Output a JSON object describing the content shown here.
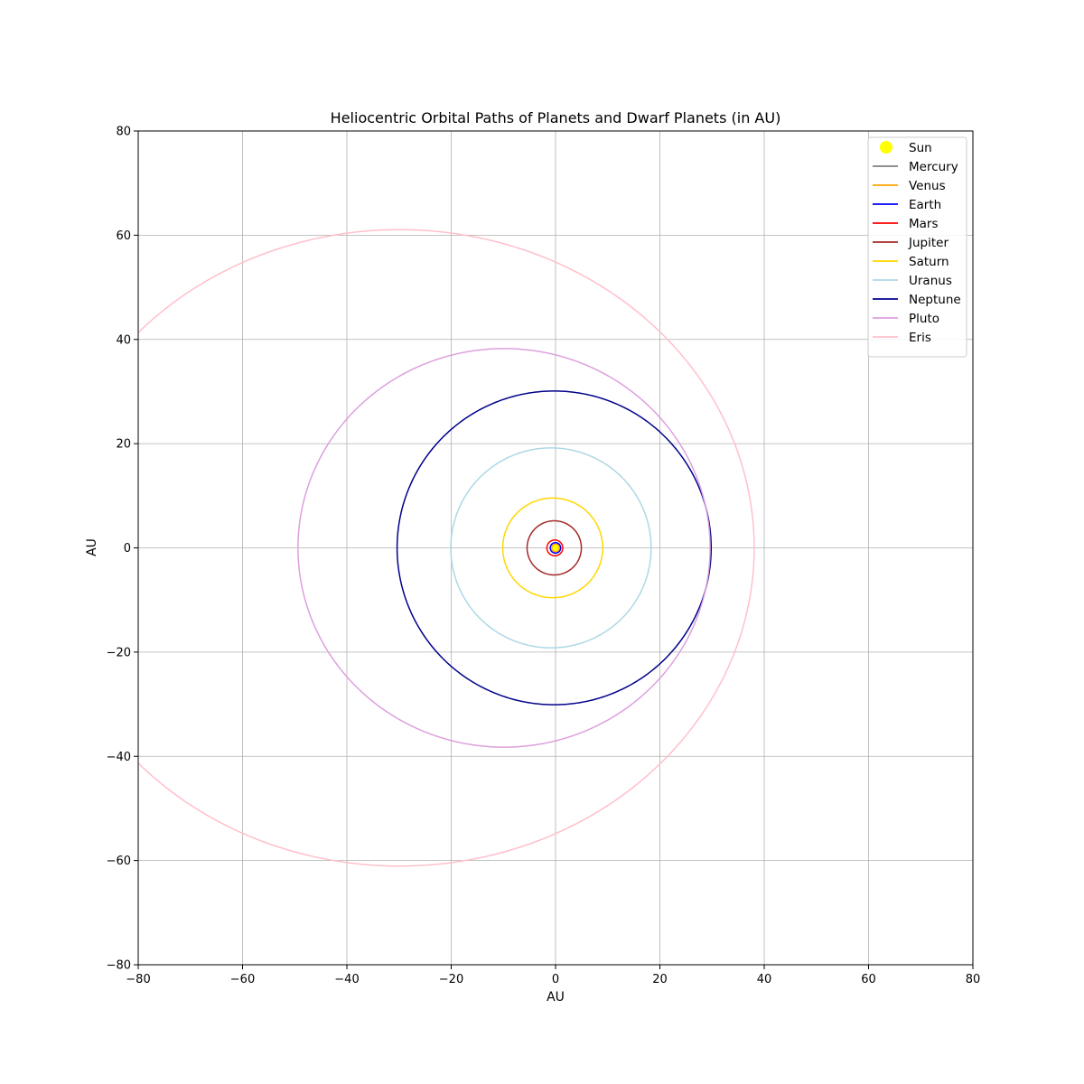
{
  "chart_data": {
    "type": "line",
    "title": "Heliocentric Orbital Paths of Planets and Dwarf Planets (in AU)",
    "xlabel": "AU",
    "ylabel": "AU",
    "xlim": [
      -80,
      80
    ],
    "ylim": [
      -80,
      80
    ],
    "xticks": [
      -80,
      -60,
      -40,
      -20,
      0,
      20,
      40,
      60,
      80
    ],
    "yticks": [
      -80,
      -60,
      -40,
      -20,
      0,
      20,
      40,
      60,
      80
    ],
    "xtick_labels": [
      "−80",
      "−60",
      "−40",
      "−20",
      "0",
      "20",
      "40",
      "60",
      "80"
    ],
    "ytick_labels": [
      "−80",
      "−60",
      "−40",
      "−20",
      "0",
      "20",
      "40",
      "60",
      "80"
    ],
    "grid": true,
    "legend_position": "top-right",
    "sun": {
      "name": "Sun",
      "x": 0,
      "y": 0,
      "color": "#ffff00"
    },
    "series": [
      {
        "name": "Mercury",
        "color": "#808080",
        "semi_major_axis": 0.39,
        "eccentricity": 0.206
      },
      {
        "name": "Venus",
        "color": "#ffa500",
        "semi_major_axis": 0.72,
        "eccentricity": 0.007
      },
      {
        "name": "Earth",
        "color": "#0000ff",
        "semi_major_axis": 1.0,
        "eccentricity": 0.017
      },
      {
        "name": "Mars",
        "color": "#ff0000",
        "semi_major_axis": 1.52,
        "eccentricity": 0.093
      },
      {
        "name": "Jupiter",
        "color": "#a52a2a",
        "semi_major_axis": 5.2,
        "eccentricity": 0.049
      },
      {
        "name": "Saturn",
        "color": "#ffd700",
        "semi_major_axis": 9.58,
        "eccentricity": 0.057
      },
      {
        "name": "Uranus",
        "color": "#add8e6",
        "semi_major_axis": 19.2,
        "eccentricity": 0.046
      },
      {
        "name": "Neptune",
        "color": "#00008b",
        "semi_major_axis": 30.1,
        "eccentricity": 0.009
      },
      {
        "name": "Pluto",
        "color": "#dda0dd",
        "semi_major_axis": 39.5,
        "eccentricity": 0.25
      },
      {
        "name": "Eris",
        "color": "#ffc0cb",
        "semi_major_axis": 68.0,
        "eccentricity": 0.44
      }
    ]
  }
}
